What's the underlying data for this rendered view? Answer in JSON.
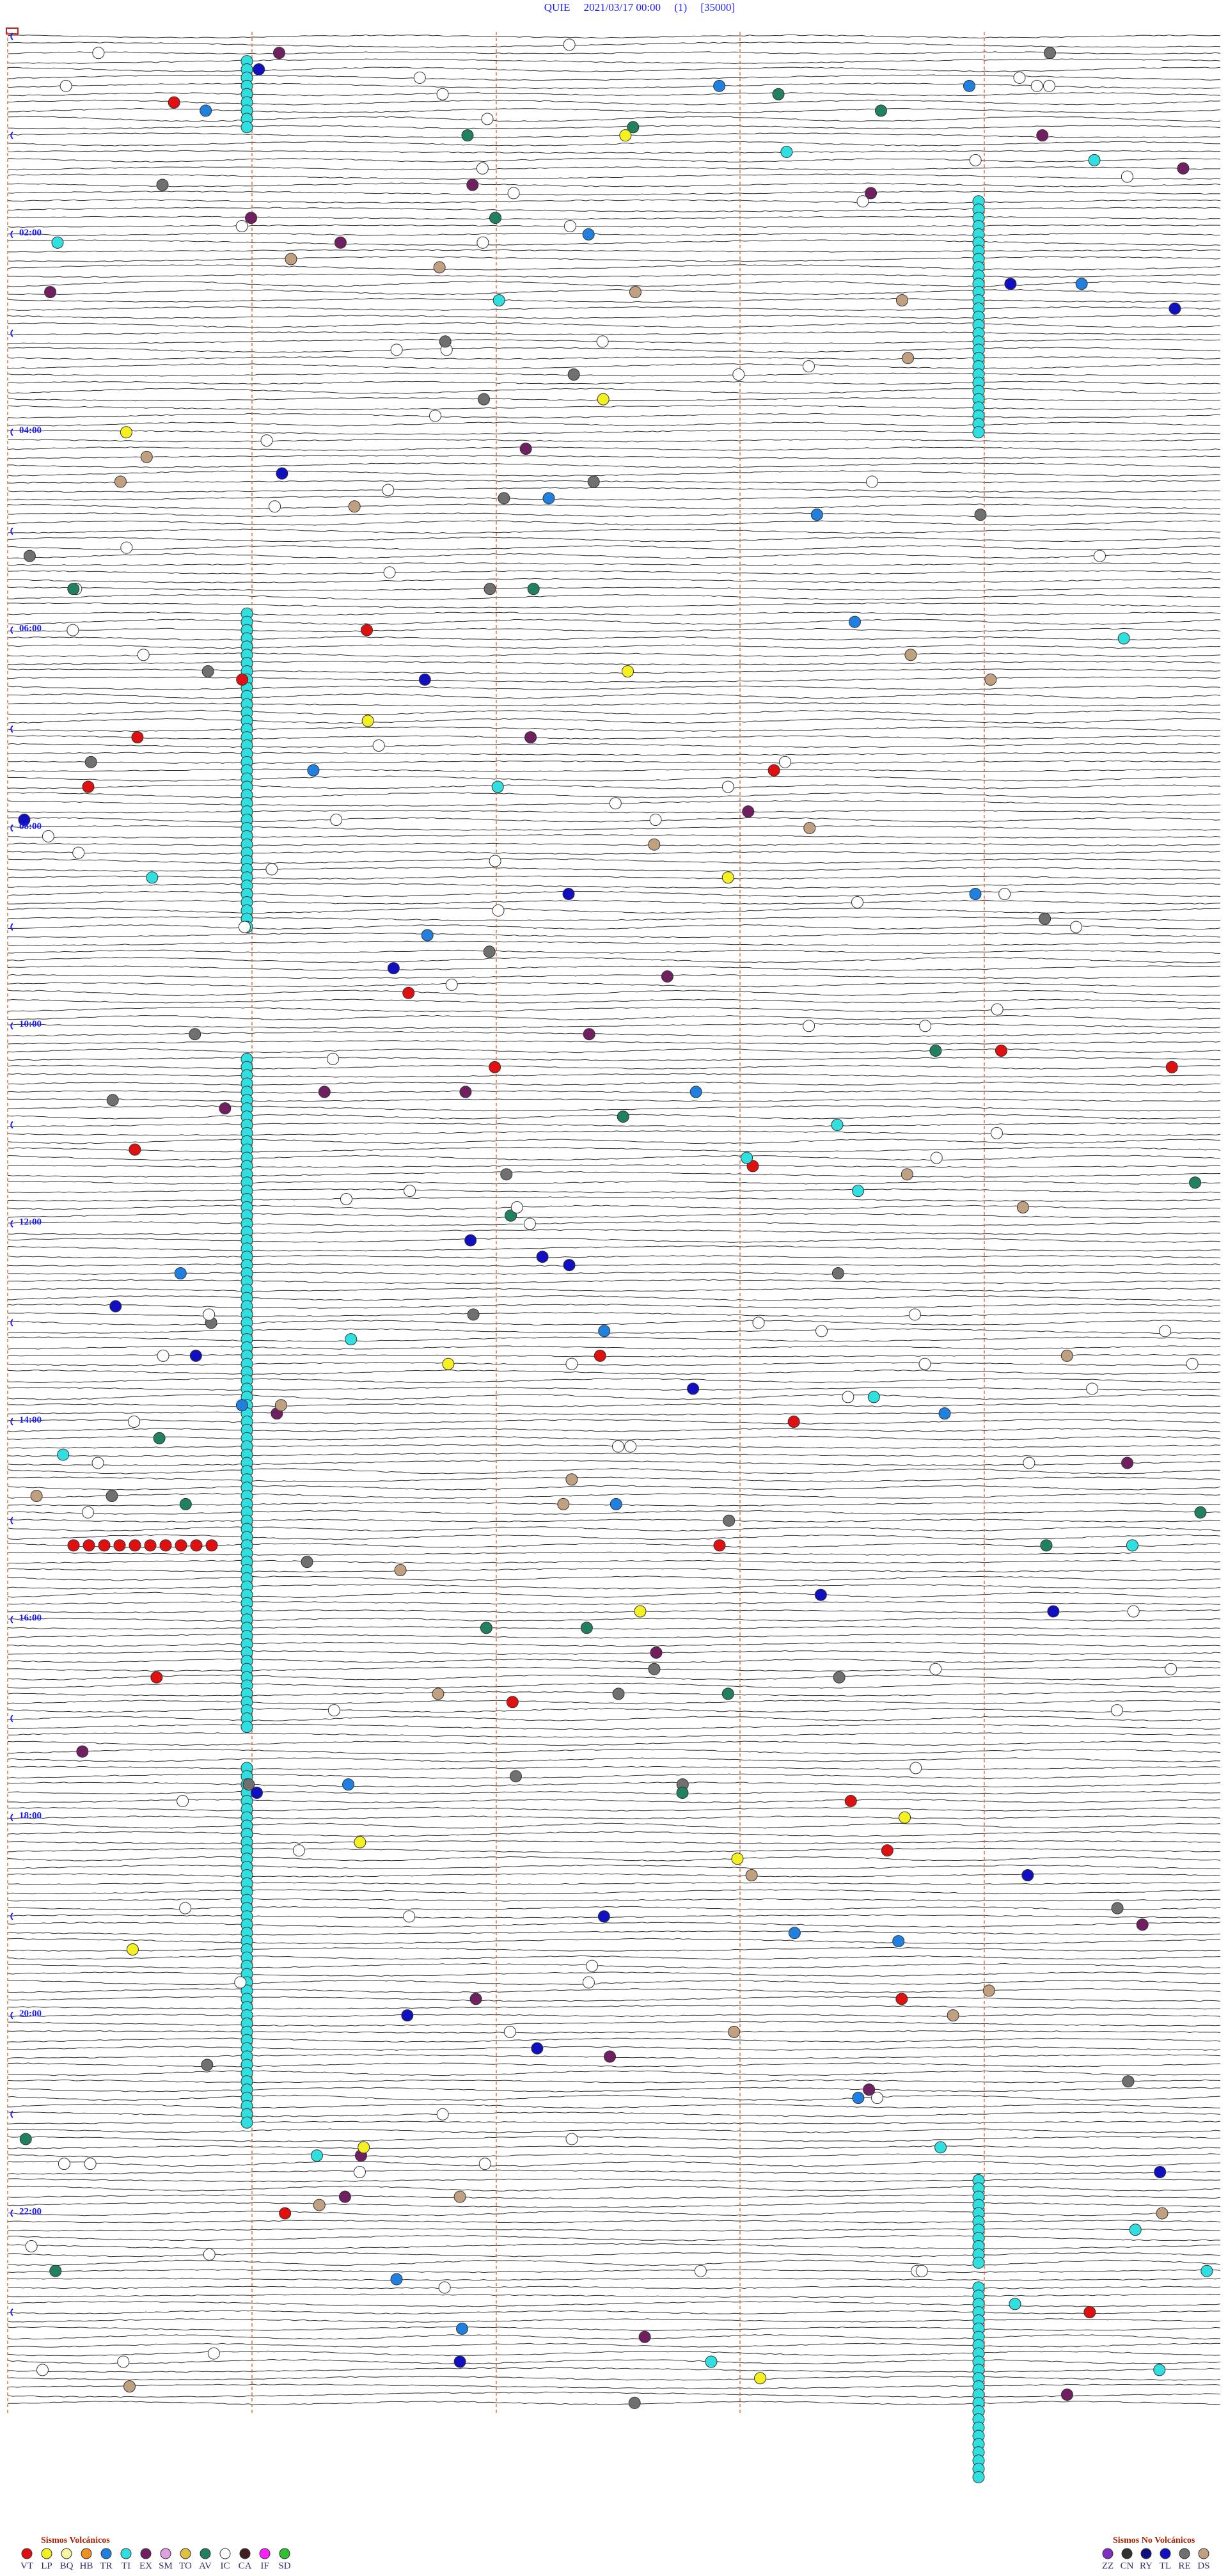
{
  "header": {
    "title": "QUIE     2021/03/17 00:00     (1)     [35000]"
  },
  "time_labels": [
    "02:00",
    "04:00",
    "06:00",
    "08:00",
    "10:00",
    "12:00",
    "14:00",
    "16:00",
    "18:00",
    "20:00",
    "22:00"
  ],
  "legend": {
    "volcanic": {
      "title": "Sismos Volcánicos",
      "items": [
        {
          "code": "VT",
          "color": "#e01010"
        },
        {
          "code": "LP",
          "color": "#f5f020"
        },
        {
          "code": "BQ",
          "color": "#f8f8a0"
        },
        {
          "code": "HB",
          "color": "#f09020"
        },
        {
          "code": "TR",
          "color": "#2080e0"
        },
        {
          "code": "TI",
          "color": "#30e0e0"
        },
        {
          "code": "EX",
          "color": "#702060"
        },
        {
          "code": "SM",
          "color": "#e0a0e0"
        },
        {
          "code": "TO",
          "color": "#e0c040"
        },
        {
          "code": "AV",
          "color": "#208060"
        },
        {
          "code": "IC",
          "color": "#ffffff"
        },
        {
          "code": "CA",
          "color": "#402020"
        },
        {
          "code": "IF",
          "color": "#ff20ff"
        },
        {
          "code": "SD",
          "color": "#30c030"
        }
      ]
    },
    "non_volcanic": {
      "title": "Sismos No Volcánicos",
      "items": [
        {
          "code": "ZZ",
          "color": "#8030c0"
        },
        {
          "code": "CN",
          "color": "#303030"
        },
        {
          "code": "RY",
          "color": "#101080"
        },
        {
          "code": "TL",
          "color": "#1010c0"
        },
        {
          "code": "RE",
          "color": "#707070"
        },
        {
          "code": "DS",
          "color": "#c0a080"
        }
      ]
    }
  }
}
